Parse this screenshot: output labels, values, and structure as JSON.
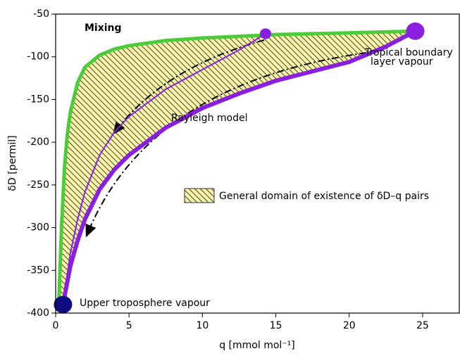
{
  "chart_data": {
    "type": "line",
    "xlabel": "q [mmol mol⁻¹]",
    "ylabel": "δD [permil]",
    "xlim": [
      0,
      27.5
    ],
    "ylim": [
      -400,
      -50
    ],
    "xticks": [
      0,
      5,
      10,
      15,
      20,
      25
    ],
    "yticks": [
      -50,
      -100,
      -150,
      -200,
      -250,
      -300,
      -350,
      -400
    ],
    "series": [
      {
        "name": "Mixing",
        "color": "#4dcc3a",
        "x": [
          0.2,
          0.4,
          0.6,
          0.8,
          1,
          1.5,
          2,
          3,
          4,
          5,
          7.5,
          10,
          15,
          20,
          24.5
        ],
        "values": [
          -395,
          -300,
          -230,
          -190,
          -165,
          -130,
          -112,
          -98,
          -91,
          -87,
          -81,
          -78,
          -74,
          -72,
          -70
        ]
      },
      {
        "name": "Rayleigh model",
        "color": "#8b1fe0",
        "x": [
          0.5,
          1,
          1.5,
          2,
          3,
          4,
          5,
          7.5,
          10,
          12.5,
          15,
          17.5,
          20,
          22.5,
          24.5
        ],
        "values": [
          -390,
          -345,
          -315,
          -290,
          -255,
          -232,
          -215,
          -183,
          -160,
          -143,
          -128,
          -117,
          -106,
          -88,
          -70
        ]
      },
      {
        "color": "#8b1fe0",
        "x": [
          0.5,
          1,
          1.5,
          2,
          3,
          4,
          5,
          7.5,
          10,
          12.5,
          14.3
        ],
        "values": [
          -390,
          -330,
          -290,
          -258,
          -215,
          -188,
          -170,
          -138,
          -115,
          -92,
          -73
        ]
      }
    ],
    "points": [
      {
        "x": 14.3,
        "y": -73,
        "color": "#8b1fe0"
      },
      {
        "x": 24.5,
        "y": -70,
        "color": "#8b1fe0"
      },
      {
        "x": 0.5,
        "y": -390,
        "color": "#0d0d80"
      }
    ],
    "annotations": [
      "Tropical boundary layer vapour",
      "Upper troposphere vapour"
    ],
    "legend_label": "General domain of existence of δD–q pairs"
  }
}
